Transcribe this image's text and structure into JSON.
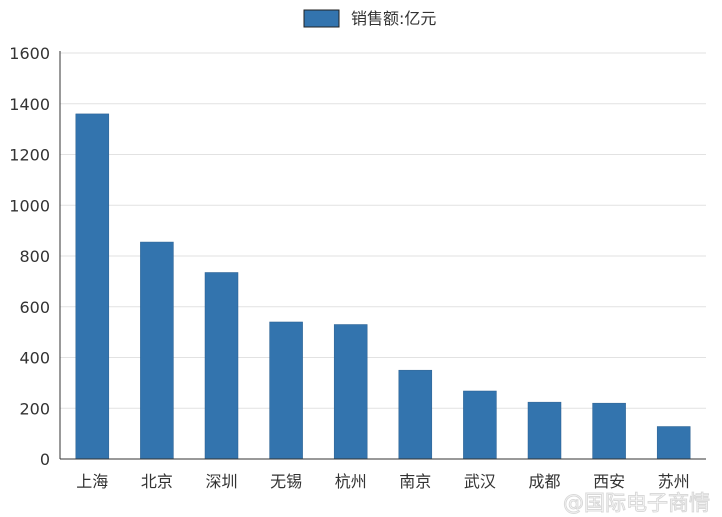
{
  "chart_data": {
    "type": "bar",
    "categories": [
      "上海",
      "北京",
      "深圳",
      "无锡",
      "杭州",
      "南京",
      "武汉",
      "成都",
      "西安",
      "苏州"
    ],
    "series": [
      {
        "name": "销售额:亿元",
        "values": [
          1360,
          855,
          735,
          540,
          530,
          350,
          268,
          224,
          220,
          128
        ]
      }
    ],
    "ylim": [
      0,
      1600
    ],
    "yticks": [
      0,
      200,
      400,
      600,
      800,
      1000,
      1200,
      1400,
      1600
    ],
    "grid": true,
    "legend_position": "top-center",
    "colors": {
      "bar": "#3374ae",
      "bar_stroke": "#2b5f8f",
      "grid": "#e2e2e2",
      "axis": "#333333",
      "text": "#333333",
      "watermark": "#d9d9d9"
    }
  },
  "watermark": "@国际电子商情"
}
